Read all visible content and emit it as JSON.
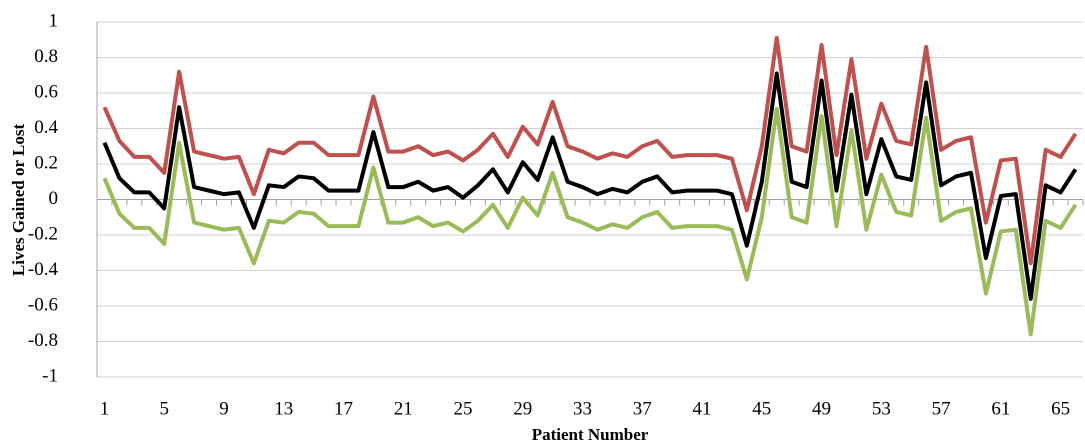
{
  "chart_data": {
    "type": "line",
    "x_label": "Patient Number",
    "y_label": "Lives Gained or Lost",
    "categories": [
      "1",
      null,
      null,
      null,
      "5",
      null,
      null,
      null,
      "9",
      null,
      null,
      null,
      "13",
      null,
      null,
      null,
      "17",
      null,
      null,
      null,
      "21",
      null,
      null,
      null,
      "25",
      null,
      null,
      null,
      "29",
      null,
      null,
      null,
      "33",
      null,
      null,
      null,
      "37",
      null,
      null,
      null,
      "41",
      null,
      null,
      null,
      "45",
      null,
      null,
      null,
      "49",
      null,
      null,
      null,
      "53",
      null,
      null,
      null,
      "57",
      null,
      null,
      null,
      "61",
      null,
      null,
      null,
      "65",
      null
    ],
    "series": [
      {
        "color": "#c0504d",
        "values": [
          0.52,
          0.33,
          0.24,
          0.24,
          0.15,
          0.72,
          0.27,
          0.25,
          0.23,
          0.24,
          0.03,
          0.28,
          0.26,
          0.32,
          0.32,
          0.25,
          0.25,
          0.25,
          0.58,
          0.27,
          0.27,
          0.3,
          0.25,
          0.27,
          0.22,
          0.28,
          0.37,
          0.24,
          0.41,
          0.31,
          0.55,
          0.3,
          0.27,
          0.23,
          0.26,
          0.24,
          0.3,
          0.33,
          0.24,
          0.25,
          0.25,
          0.25,
          0.23,
          -0.06,
          0.3,
          0.91,
          0.3,
          0.27,
          0.87,
          0.25,
          0.79,
          0.23,
          0.54,
          0.33,
          0.31,
          0.86,
          0.28,
          0.33,
          0.35,
          -0.13,
          0.22,
          0.23,
          -0.36,
          0.28,
          0.24,
          0.37
        ]
      },
      {
        "color": "#000000",
        "values": [
          0.32,
          0.12,
          0.04,
          0.04,
          -0.05,
          0.52,
          0.07,
          0.05,
          0.03,
          0.04,
          -0.16,
          0.08,
          0.07,
          0.13,
          0.12,
          0.05,
          0.05,
          0.05,
          0.38,
          0.07,
          0.07,
          0.1,
          0.05,
          0.07,
          0.01,
          0.08,
          0.17,
          0.04,
          0.21,
          0.11,
          0.35,
          0.1,
          0.07,
          0.03,
          0.06,
          0.04,
          0.1,
          0.13,
          0.04,
          0.05,
          0.05,
          0.05,
          0.03,
          -0.26,
          0.1,
          0.71,
          0.1,
          0.07,
          0.67,
          0.05,
          0.59,
          0.03,
          0.34,
          0.13,
          0.11,
          0.66,
          0.08,
          0.13,
          0.15,
          -0.33,
          0.02,
          0.03,
          -0.56,
          0.08,
          0.04,
          0.17
        ]
      },
      {
        "color": "#9bbb59",
        "values": [
          0.12,
          -0.08,
          -0.16,
          -0.16,
          -0.25,
          0.32,
          -0.13,
          -0.15,
          -0.17,
          -0.16,
          -0.36,
          -0.12,
          -0.13,
          -0.07,
          -0.08,
          -0.15,
          -0.15,
          -0.15,
          0.18,
          -0.13,
          -0.13,
          -0.1,
          -0.15,
          -0.13,
          -0.18,
          -0.12,
          -0.03,
          -0.16,
          0.01,
          -0.09,
          0.15,
          -0.1,
          -0.13,
          -0.17,
          -0.14,
          -0.16,
          -0.1,
          -0.07,
          -0.16,
          -0.15,
          -0.15,
          -0.15,
          -0.17,
          -0.45,
          -0.1,
          0.51,
          -0.1,
          -0.13,
          0.47,
          -0.15,
          0.39,
          -0.17,
          0.14,
          -0.07,
          -0.09,
          0.46,
          -0.12,
          -0.07,
          -0.05,
          -0.53,
          -0.18,
          -0.17,
          -0.76,
          -0.12,
          -0.16,
          -0.03
        ]
      }
    ],
    "ylim": [
      -1,
      1
    ],
    "yticks": [
      -1,
      -0.8,
      -0.6,
      -0.4,
      -0.2,
      0,
      0.2,
      0.4,
      0.6,
      0.8,
      1
    ],
    "grid": true
  }
}
